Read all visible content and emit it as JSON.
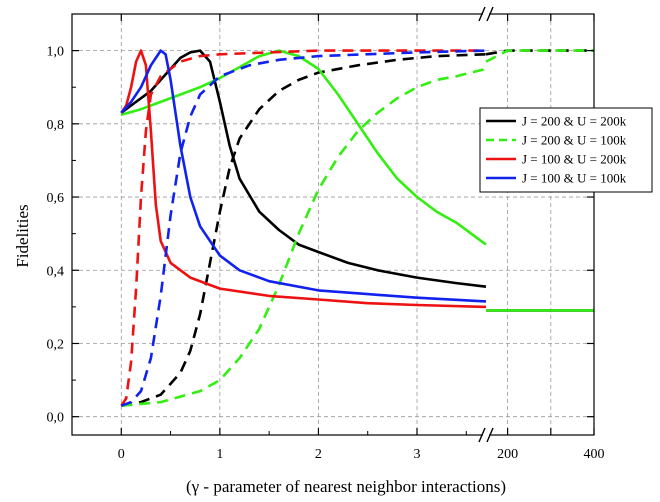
{
  "chart_data": {
    "type": "line",
    "title": "",
    "xlabel": "(γ - parameter of nearest neighbor interactions)",
    "ylabel": "Fidelities",
    "grid": true,
    "legend_position": "right",
    "x_axis_broken": true,
    "x_segments": [
      {
        "range": [
          -0.5,
          3.7
        ],
        "ticks": [
          0,
          1,
          2,
          3
        ],
        "tick_labels": [
          "0",
          "1",
          "2",
          "3"
        ]
      },
      {
        "range": [
          150,
          400
        ],
        "ticks": [
          200,
          300,
          400
        ],
        "tick_labels": [
          "200",
          "",
          "400"
        ]
      }
    ],
    "ylim": [
      -0.05,
      1.1
    ],
    "y_ticks": [
      0.0,
      0.2,
      0.4,
      0.6,
      0.8,
      1.0
    ],
    "y_tick_labels": [
      "0,0",
      "0,2",
      "0,4",
      "0,6",
      "0,8",
      "1,0"
    ],
    "series": [
      {
        "name": "J = 200 & U = 200k",
        "color": "#000000",
        "style": "solid",
        "points": [
          [
            0,
            0.83
          ],
          [
            0.1,
            0.85
          ],
          [
            0.2,
            0.87
          ],
          [
            0.3,
            0.89
          ],
          [
            0.4,
            0.92
          ],
          [
            0.5,
            0.95
          ],
          [
            0.6,
            0.98
          ],
          [
            0.7,
            0.995
          ],
          [
            0.8,
            1.0
          ],
          [
            0.9,
            0.97
          ],
          [
            1.0,
            0.86
          ],
          [
            1.1,
            0.74
          ],
          [
            1.2,
            0.65
          ],
          [
            1.4,
            0.56
          ],
          [
            1.6,
            0.51
          ],
          [
            1.8,
            0.47
          ],
          [
            2.0,
            0.45
          ],
          [
            2.3,
            0.42
          ],
          [
            2.6,
            0.4
          ],
          [
            3.0,
            0.38
          ],
          [
            3.4,
            0.365
          ],
          [
            3.7,
            0.355
          ]
        ],
        "points_far": [
          [
            150,
            0.29
          ],
          [
            200,
            0.29
          ],
          [
            300,
            0.29
          ],
          [
            400,
            0.29
          ]
        ]
      },
      {
        "name": "J = 200 & U = 200k",
        "color": "#000000",
        "style": "dashed",
        "in_legend": false,
        "points": [
          [
            0,
            0.03
          ],
          [
            0.2,
            0.04
          ],
          [
            0.4,
            0.06
          ],
          [
            0.6,
            0.12
          ],
          [
            0.7,
            0.18
          ],
          [
            0.8,
            0.28
          ],
          [
            0.9,
            0.42
          ],
          [
            1.0,
            0.56
          ],
          [
            1.1,
            0.68
          ],
          [
            1.2,
            0.76
          ],
          [
            1.4,
            0.84
          ],
          [
            1.6,
            0.89
          ],
          [
            1.8,
            0.92
          ],
          [
            2.0,
            0.94
          ],
          [
            2.4,
            0.96
          ],
          [
            2.8,
            0.975
          ],
          [
            3.2,
            0.985
          ],
          [
            3.7,
            0.99
          ]
        ],
        "points_far": [
          [
            150,
            0.99
          ],
          [
            200,
            1.0
          ],
          [
            300,
            1.0
          ],
          [
            400,
            1.0
          ]
        ]
      },
      {
        "name": "J = 200 & U = 100k",
        "color": "#33ee11",
        "style": "solid",
        "in_legend": false,
        "points": [
          [
            0,
            0.825
          ],
          [
            0.2,
            0.84
          ],
          [
            0.4,
            0.86
          ],
          [
            0.6,
            0.88
          ],
          [
            0.8,
            0.9
          ],
          [
            1.0,
            0.925
          ],
          [
            1.2,
            0.955
          ],
          [
            1.4,
            0.985
          ],
          [
            1.6,
            1.0
          ],
          [
            1.8,
            0.985
          ],
          [
            2.0,
            0.95
          ],
          [
            2.2,
            0.88
          ],
          [
            2.4,
            0.8
          ],
          [
            2.6,
            0.72
          ],
          [
            2.8,
            0.65
          ],
          [
            3.0,
            0.6
          ],
          [
            3.2,
            0.56
          ],
          [
            3.4,
            0.53
          ],
          [
            3.6,
            0.49
          ],
          [
            3.7,
            0.47
          ]
        ],
        "points_far": [
          [
            150,
            0.29
          ],
          [
            200,
            0.29
          ],
          [
            300,
            0.29
          ],
          [
            400,
            0.29
          ]
        ]
      },
      {
        "name": "J = 200 & U = 100k",
        "color": "#33ee11",
        "style": "dashed",
        "points": [
          [
            0,
            0.03
          ],
          [
            0.4,
            0.04
          ],
          [
            0.8,
            0.07
          ],
          [
            1.0,
            0.1
          ],
          [
            1.2,
            0.16
          ],
          [
            1.4,
            0.24
          ],
          [
            1.6,
            0.36
          ],
          [
            1.8,
            0.5
          ],
          [
            2.0,
            0.62
          ],
          [
            2.2,
            0.71
          ],
          [
            2.4,
            0.78
          ],
          [
            2.6,
            0.83
          ],
          [
            2.8,
            0.87
          ],
          [
            3.0,
            0.9
          ],
          [
            3.2,
            0.92
          ],
          [
            3.4,
            0.93
          ],
          [
            3.7,
            0.95
          ]
        ],
        "points_far": [
          [
            150,
            0.97
          ],
          [
            200,
            1.0
          ],
          [
            300,
            1.0
          ],
          [
            400,
            1.0
          ]
        ]
      },
      {
        "name": "J = 100 & U = 200k",
        "color": "#ee1111",
        "style": "solid",
        "points": [
          [
            0,
            0.83
          ],
          [
            0.05,
            0.85
          ],
          [
            0.1,
            0.9
          ],
          [
            0.15,
            0.97
          ],
          [
            0.2,
            1.0
          ],
          [
            0.25,
            0.96
          ],
          [
            0.3,
            0.78
          ],
          [
            0.35,
            0.58
          ],
          [
            0.4,
            0.48
          ],
          [
            0.5,
            0.42
          ],
          [
            0.7,
            0.38
          ],
          [
            1.0,
            0.35
          ],
          [
            1.5,
            0.33
          ],
          [
            2.0,
            0.32
          ],
          [
            2.5,
            0.31
          ],
          [
            3.0,
            0.305
          ],
          [
            3.7,
            0.3
          ]
        ],
        "points_far": []
      },
      {
        "name": "J = 100 & U = 200k",
        "color": "#ee1111",
        "style": "dashed",
        "in_legend": false,
        "points": [
          [
            0,
            0.03
          ],
          [
            0.05,
            0.05
          ],
          [
            0.1,
            0.15
          ],
          [
            0.15,
            0.35
          ],
          [
            0.2,
            0.6
          ],
          [
            0.25,
            0.78
          ],
          [
            0.3,
            0.88
          ],
          [
            0.4,
            0.93
          ],
          [
            0.6,
            0.97
          ],
          [
            0.8,
            0.985
          ],
          [
            1.0,
            0.99
          ],
          [
            1.5,
            0.995
          ],
          [
            2.0,
            1.0
          ],
          [
            3.7,
            1.0
          ]
        ],
        "points_far": []
      },
      {
        "name": "J = 100 & U = 100k",
        "color": "#1122ee",
        "style": "solid",
        "points": [
          [
            0,
            0.83
          ],
          [
            0.1,
            0.86
          ],
          [
            0.2,
            0.9
          ],
          [
            0.3,
            0.96
          ],
          [
            0.4,
            1.0
          ],
          [
            0.45,
            0.99
          ],
          [
            0.5,
            0.92
          ],
          [
            0.6,
            0.74
          ],
          [
            0.7,
            0.6
          ],
          [
            0.8,
            0.52
          ],
          [
            1.0,
            0.44
          ],
          [
            1.2,
            0.4
          ],
          [
            1.5,
            0.37
          ],
          [
            2.0,
            0.345
          ],
          [
            2.5,
            0.335
          ],
          [
            3.0,
            0.325
          ],
          [
            3.7,
            0.315
          ]
        ],
        "points_far": []
      },
      {
        "name": "J = 100 & U = 100k",
        "color": "#1122ee",
        "style": "dashed",
        "in_legend": false,
        "points": [
          [
            0,
            0.03
          ],
          [
            0.1,
            0.04
          ],
          [
            0.2,
            0.07
          ],
          [
            0.3,
            0.16
          ],
          [
            0.4,
            0.33
          ],
          [
            0.5,
            0.55
          ],
          [
            0.6,
            0.72
          ],
          [
            0.7,
            0.82
          ],
          [
            0.8,
            0.88
          ],
          [
            1.0,
            0.93
          ],
          [
            1.3,
            0.96
          ],
          [
            1.6,
            0.975
          ],
          [
            2.0,
            0.985
          ],
          [
            3.0,
            0.995
          ],
          [
            3.7,
            1.0
          ]
        ],
        "points_far": []
      }
    ]
  }
}
